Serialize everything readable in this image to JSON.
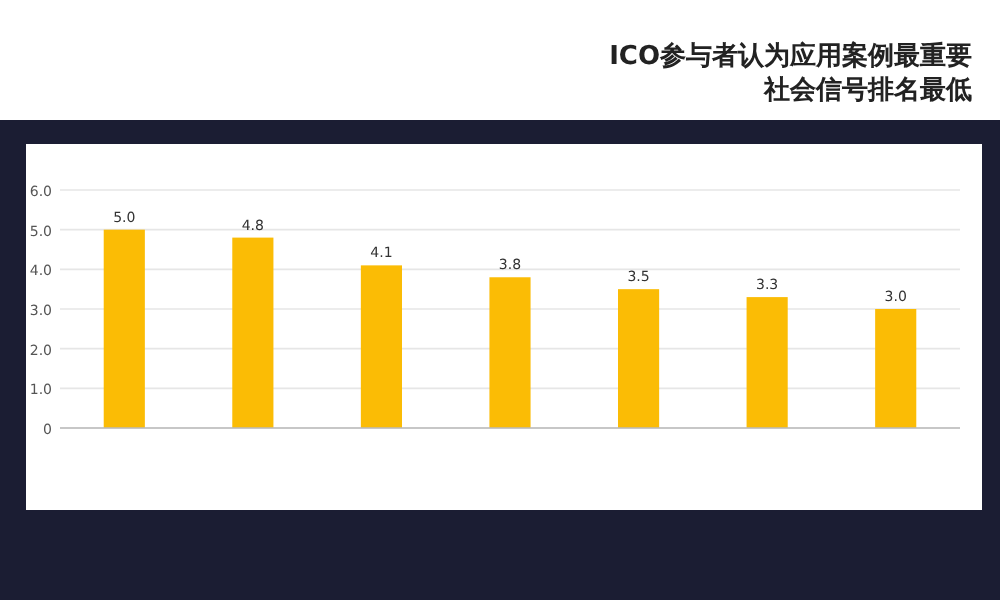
{
  "chart_data": {
    "type": "bar",
    "title": "ICO参与者认为应用案例最重要",
    "subtitle": "社会信号排名最低",
    "categories": [
      null,
      null,
      null,
      null,
      null,
      null,
      null
    ],
    "values": [
      5.0,
      4.8,
      4.1,
      3.8,
      3.5,
      3.3,
      3.0
    ],
    "value_labels": [
      "5.0",
      "4.8",
      "4.1",
      "3.8",
      "3.5",
      "3.3",
      "3.0"
    ],
    "color": "#fbbc05",
    "ylim": [
      0,
      6
    ],
    "yticks": [
      0,
      {
        "value": 1,
        "label": "1.0"
      },
      {
        "value": 2,
        "label": "2.0"
      },
      {
        "value": 3,
        "label": "3.0"
      },
      {
        "value": 4,
        "label": "4.0"
      },
      {
        "value": 5,
        "label": "5.0"
      },
      {
        "value": 6,
        "label": "6.0"
      }
    ],
    "grid": "y"
  }
}
